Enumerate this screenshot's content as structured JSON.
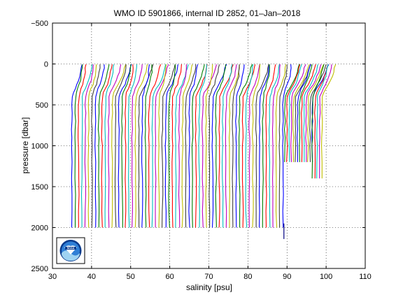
{
  "chart_data": {
    "type": "line",
    "title": "WMO ID 5901866, internal ID 2852, 01–Jan–2018",
    "xlabel": "salinity [psu]",
    "ylabel": "pressure [dbar]",
    "xlim": [
      30,
      110
    ],
    "ylim": [
      -500,
      2500
    ],
    "y_reversed": true,
    "xticks": [
      "30",
      "40",
      "50",
      "60",
      "70",
      "80",
      "90",
      "100",
      "110"
    ],
    "yticks": [
      "−500",
      "0",
      "500",
      "1000",
      "1500",
      "2000",
      "2500"
    ],
    "grid": true,
    "grid_style": "dotted",
    "legend": "none",
    "logo": "noaa-logo",
    "series_colors": [
      "#0000ff",
      "#008000",
      "#ff0000",
      "#00bfbf",
      "#bf00bf",
      "#bfbf00",
      "#404040"
    ],
    "profile_template": {
      "pressure": [
        5,
        50,
        100,
        150,
        200,
        250,
        300,
        350,
        400,
        500,
        600,
        700,
        800,
        900,
        1000,
        1200,
        1400,
        1600,
        1800,
        2000
      ],
      "salinity_offset": [
        1.6,
        1.55,
        1.5,
        1.4,
        1.2,
        0.95,
        0.55,
        0.25,
        0.1,
        0.0,
        -0.02,
        -0.04,
        -0.05,
        -0.05,
        -0.05,
        -0.04,
        -0.03,
        -0.02,
        -0.01,
        0.0
      ]
    },
    "profile_groups": [
      {
        "count": 64,
        "deep_start": 35.0,
        "deep_end": 89.0,
        "max_pressure": 2000,
        "surface_extra": [
          0.0,
          2.0
        ]
      },
      {
        "count": 14,
        "deep_start": 89.5,
        "deep_end": 96.5,
        "max_pressure": 1350,
        "surface_extra": [
          1.5,
          2.5
        ]
      },
      {
        "count": 5,
        "deep_start": 96.5,
        "deep_end": 99.0,
        "max_pressure": 1500,
        "surface_extra": [
          1.0,
          2.0
        ]
      }
    ],
    "annotations": [
      {
        "salinity": 89.2,
        "pressure": 2140,
        "label": ""
      }
    ]
  }
}
